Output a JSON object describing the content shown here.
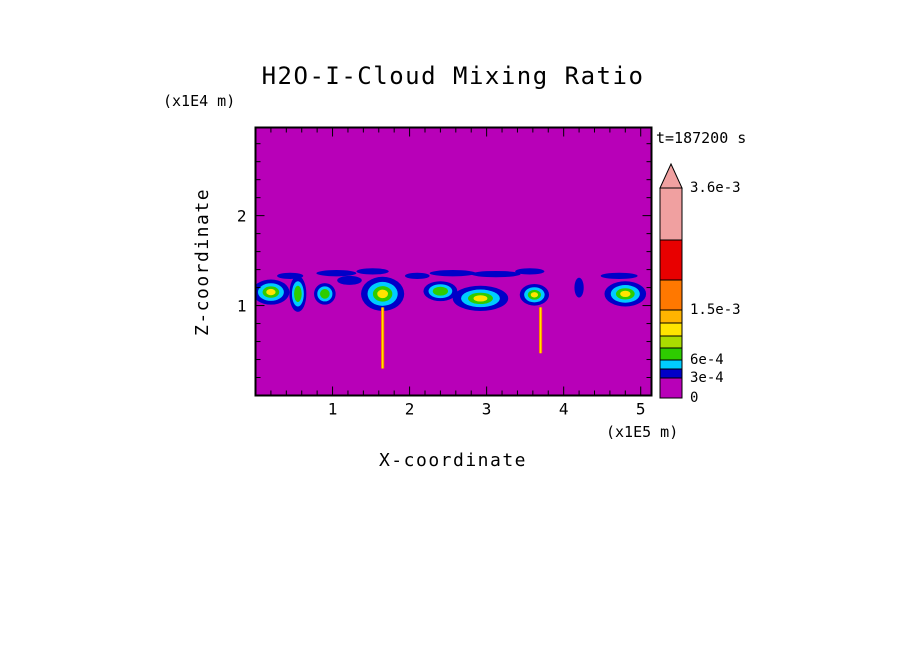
{
  "title": "H2O-I-Cloud Mixing Ratio",
  "time_label": "t=187200 s",
  "axes": {
    "x_label": "X-coordinate",
    "x_unit": "(x1E5 m)",
    "y_label": "Z-coordinate",
    "y_unit": "(x1E4 m)",
    "x_tick_labels": [
      "1",
      "2",
      "3",
      "4",
      "5"
    ],
    "y_tick_labels": [
      "1",
      "2"
    ]
  },
  "colorbar": {
    "bottom_label": "0",
    "over_color": "#F0A0A0",
    "segments": [
      {
        "color": "#B800B8",
        "top_label": "3e-4"
      },
      {
        "color": "#0000C8"
      },
      {
        "color": "#00CCFF",
        "top_label": "6e-4"
      },
      {
        "color": "#2ECC00"
      },
      {
        "color": "#AADC00"
      },
      {
        "color": "#FFE400"
      },
      {
        "color": "#FFB400",
        "top_label": "1.5e-3"
      },
      {
        "color": "#FF7800"
      },
      {
        "color": "#E80000"
      },
      {
        "color": "#F0A0A0",
        "top_label": "3.6e-3"
      }
    ]
  },
  "chart_data": {
    "type": "heatmap",
    "title": "H2O-I-Cloud Mixing Ratio",
    "xlabel": "X-coordinate (x1E5 m)",
    "ylabel": "Z-coordinate (x1E4 m)",
    "time_annotation": "t=187200 s",
    "x_range": [
      0,
      5.14
    ],
    "z_range": [
      0,
      2.98
    ],
    "contour_levels": [
      0,
      0.0003,
      0.0006,
      0.0015,
      0.0036
    ],
    "background_value": 0,
    "background_color": "#B800B8",
    "blob_colors": [
      "#0000C8",
      "#00CCFF",
      "#2ECC00",
      "#FFE400"
    ],
    "layer_levels": [
      0.0003,
      0.00045,
      0.0006,
      0.001
    ],
    "cloud_band_center_z": 1.1,
    "blobs": [
      {
        "x": 0.2,
        "z": 1.15,
        "rx": 0.24,
        "rz": 0.14,
        "layers": 4
      },
      {
        "x": 0.55,
        "z": 1.13,
        "rx": 0.11,
        "rz": 0.2,
        "layers": 3
      },
      {
        "x": 0.9,
        "z": 1.13,
        "rx": 0.14,
        "rz": 0.12,
        "layers": 3
      },
      {
        "x": 1.22,
        "z": 1.28,
        "rx": 0.16,
        "rz": 0.05,
        "layers": 1
      },
      {
        "x": 1.65,
        "z": 1.13,
        "rx": 0.28,
        "rz": 0.19,
        "layers": 4
      },
      {
        "x": 2.4,
        "z": 1.16,
        "rx": 0.22,
        "rz": 0.11,
        "layers": 3
      },
      {
        "x": 2.92,
        "z": 1.08,
        "rx": 0.36,
        "rz": 0.14,
        "layers": 4
      },
      {
        "x": 3.62,
        "z": 1.12,
        "rx": 0.19,
        "rz": 0.12,
        "layers": 4
      },
      {
        "x": 4.2,
        "z": 1.2,
        "rx": 0.06,
        "rz": 0.11,
        "layers": 1
      },
      {
        "x": 4.8,
        "z": 1.13,
        "rx": 0.27,
        "rz": 0.14,
        "layers": 4
      }
    ],
    "wisps": [
      {
        "x": 0.45,
        "z": 1.33,
        "rx": 0.17
      },
      {
        "x": 1.05,
        "z": 1.36,
        "rx": 0.26
      },
      {
        "x": 1.52,
        "z": 1.38,
        "rx": 0.21
      },
      {
        "x": 2.1,
        "z": 1.33,
        "rx": 0.16
      },
      {
        "x": 2.56,
        "z": 1.36,
        "rx": 0.3
      },
      {
        "x": 3.12,
        "z": 1.35,
        "rx": 0.32
      },
      {
        "x": 3.56,
        "z": 1.38,
        "rx": 0.19
      },
      {
        "x": 4.72,
        "z": 1.33,
        "rx": 0.24
      }
    ],
    "streaks": [
      {
        "x": 1.65,
        "z_top": 0.98,
        "z_bottom": 0.3,
        "approx_peak": 0.0015
      },
      {
        "x": 3.7,
        "z_top": 0.98,
        "z_bottom": 0.47,
        "approx_peak": 0.0015
      }
    ]
  }
}
